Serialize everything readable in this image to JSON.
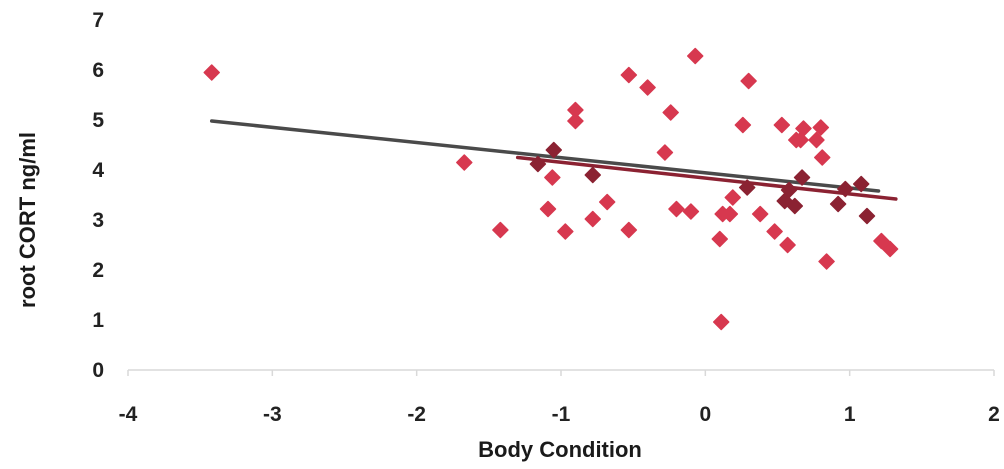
{
  "chart_data": {
    "type": "scatter",
    "title": "",
    "xlabel": "Body Condition",
    "ylabel": "root CORT ng/ml",
    "xlim": [
      -4,
      2
    ],
    "ylim": [
      0,
      7
    ],
    "xticks": [
      -4,
      -3,
      -2,
      -1,
      0,
      1,
      2
    ],
    "yticks": [
      0,
      1,
      2,
      3,
      4,
      5,
      6,
      7
    ],
    "grid": false,
    "legend": "none",
    "series": [
      {
        "color": "#d7384f",
        "marker": "diamond",
        "points": [
          [
            -3.42,
            5.95
          ],
          [
            -1.67,
            4.15
          ],
          [
            -1.42,
            2.8
          ],
          [
            -1.09,
            3.22
          ],
          [
            -1.06,
            3.85
          ],
          [
            -0.97,
            2.77
          ],
          [
            -0.9,
            5.2
          ],
          [
            -0.9,
            4.98
          ],
          [
            -0.78,
            3.02
          ],
          [
            -0.68,
            3.36
          ],
          [
            -0.53,
            5.9
          ],
          [
            -0.53,
            2.8
          ],
          [
            -0.4,
            5.65
          ],
          [
            -0.28,
            4.35
          ],
          [
            -0.24,
            5.15
          ],
          [
            -0.2,
            3.22
          ],
          [
            -0.1,
            3.17
          ],
          [
            -0.07,
            6.28
          ],
          [
            0.1,
            2.62
          ],
          [
            0.11,
            0.96
          ],
          [
            0.12,
            3.12
          ],
          [
            0.17,
            3.12
          ],
          [
            0.19,
            3.45
          ],
          [
            0.26,
            4.9
          ],
          [
            0.3,
            5.78
          ],
          [
            0.38,
            3.12
          ],
          [
            0.48,
            2.77
          ],
          [
            0.53,
            4.9
          ],
          [
            0.57,
            2.5
          ],
          [
            0.63,
            4.6
          ],
          [
            0.66,
            4.6
          ],
          [
            0.68,
            4.83
          ],
          [
            0.77,
            4.6
          ],
          [
            0.8,
            4.85
          ],
          [
            0.81,
            4.25
          ],
          [
            0.84,
            2.17
          ],
          [
            1.22,
            2.58
          ],
          [
            1.28,
            2.42
          ]
        ]
      },
      {
        "color": "#8b2232",
        "marker": "diamond",
        "points": [
          [
            -1.05,
            4.4
          ],
          [
            -1.16,
            4.12
          ],
          [
            -0.78,
            3.9
          ],
          [
            0.29,
            3.65
          ],
          [
            0.55,
            3.38
          ],
          [
            0.58,
            3.6
          ],
          [
            0.62,
            3.28
          ],
          [
            0.67,
            3.85
          ],
          [
            0.92,
            3.32
          ],
          [
            0.97,
            3.62
          ],
          [
            1.08,
            3.72
          ],
          [
            1.12,
            3.08
          ]
        ]
      }
    ],
    "trendlines": [
      {
        "color": "#4a4a4a",
        "x": [
          -3.42,
          1.2
        ],
        "y": [
          4.98,
          3.58
        ]
      },
      {
        "color": "#8b2232",
        "x": [
          -1.3,
          1.32
        ],
        "y": [
          4.25,
          3.42
        ]
      }
    ]
  }
}
